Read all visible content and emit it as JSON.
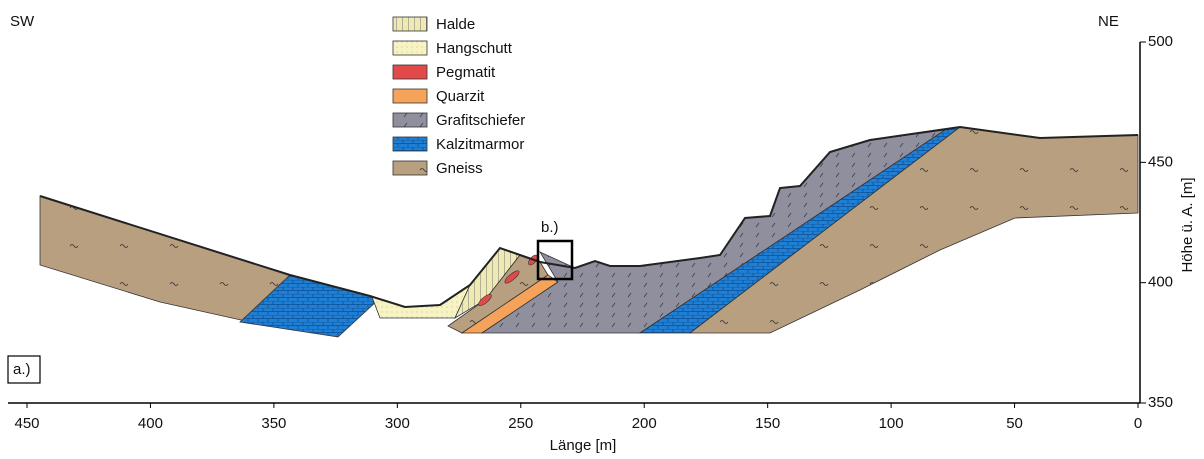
{
  "corner_labels": {
    "left": "SW",
    "right": "NE"
  },
  "panel_label": "a.)",
  "inset_label": "b.)",
  "legend": [
    "Halde",
    "Hangschutt",
    "Pegmatit",
    "Quarzit",
    "Grafitschiefer",
    "Kalzitmarmor",
    "Gneiss"
  ],
  "x_axis": {
    "label": "Länge [m]",
    "ticks": [
      450,
      400,
      350,
      300,
      250,
      200,
      150,
      100,
      50,
      0
    ]
  },
  "y_axis": {
    "label": "Höhe ü. A. [m]",
    "ticks": [
      500,
      450,
      400,
      350
    ]
  }
}
